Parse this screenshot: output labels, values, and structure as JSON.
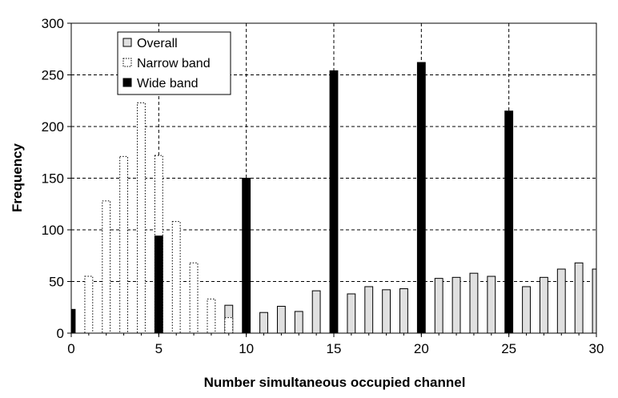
{
  "chart_data": {
    "type": "bar",
    "title": "",
    "xlabel": "Number simultaneous occupied channel",
    "ylabel": "Frequency",
    "xlim": [
      0,
      30
    ],
    "ylim": [
      0,
      300
    ],
    "xticks": [
      "0",
      "5",
      "10",
      "15",
      "20",
      "25",
      "30"
    ],
    "yticks": [
      "0",
      "50",
      "100",
      "150",
      "200",
      "250",
      "300"
    ],
    "grid": "dashed, both axes",
    "legend_position": "top-left",
    "x": [
      0,
      1,
      2,
      3,
      4,
      5,
      6,
      7,
      8,
      9,
      10,
      11,
      12,
      13,
      14,
      15,
      16,
      17,
      18,
      19,
      20,
      21,
      22,
      23,
      24,
      25,
      26,
      27,
      28,
      29,
      30
    ],
    "series": [
      {
        "name": "Overall",
        "color": "#e0e0e0",
        "style": "solid-outline",
        "values": [
          0,
          0,
          0,
          0,
          0,
          0,
          0,
          0,
          0,
          27,
          0,
          20,
          26,
          21,
          41,
          0,
          38,
          45,
          42,
          43,
          0,
          53,
          54,
          58,
          55,
          0,
          45,
          54,
          62,
          68,
          62
        ]
      },
      {
        "name": "Narrow band",
        "color": "#ffffff",
        "style": "dotted-outline",
        "values": [
          0,
          55,
          128,
          171,
          223,
          172,
          108,
          68,
          33,
          15,
          0,
          0,
          0,
          0,
          0,
          0,
          0,
          0,
          0,
          0,
          0,
          0,
          0,
          0,
          0,
          0,
          0,
          0,
          0,
          0,
          0
        ]
      },
      {
        "name": "Wide band",
        "color": "#000000",
        "style": "solid",
        "values": [
          23,
          0,
          0,
          0,
          0,
          94,
          0,
          0,
          0,
          0,
          150,
          0,
          0,
          0,
          0,
          254,
          0,
          0,
          0,
          0,
          262,
          0,
          0,
          0,
          0,
          215,
          0,
          0,
          0,
          0,
          0
        ]
      }
    ]
  }
}
